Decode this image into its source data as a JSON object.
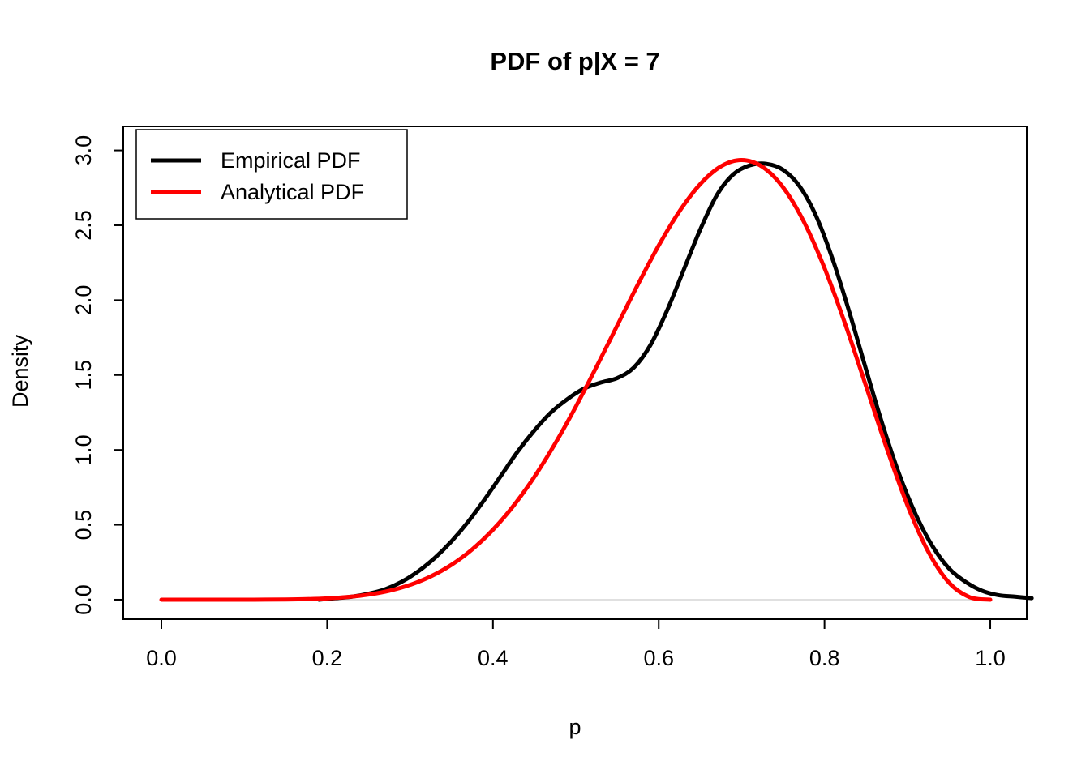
{
  "chart_data": {
    "type": "line",
    "title": "PDF of p|X = 7",
    "xlabel": "p",
    "ylabel": "Density",
    "xlim": [
      -0.046,
      1.044
    ],
    "ylim": [
      -0.13,
      3.16
    ],
    "x_tick_values": [
      0.0,
      0.2,
      0.4,
      0.6,
      0.8,
      1.0
    ],
    "x_tick_labels": [
      "0.0",
      "0.2",
      "0.4",
      "0.6",
      "0.8",
      "1.0"
    ],
    "y_tick_values": [
      0.0,
      0.5,
      1.0,
      1.5,
      2.0,
      2.5,
      3.0
    ],
    "y_tick_labels": [
      "0.0",
      "0.5",
      "1.0",
      "1.5",
      "2.0",
      "2.5",
      "3.0"
    ],
    "grid": "off",
    "zero_line_y": 0,
    "legend": {
      "position": "topleft",
      "entries": [
        {
          "label": "Empirical PDF",
          "color": "#000000"
        },
        {
          "label": "Analytical PDF",
          "color": "#ff0000"
        }
      ]
    },
    "series": [
      {
        "name": "Empirical PDF",
        "color": "#000000",
        "line_width": 5,
        "x": [
          0.19,
          0.21,
          0.23,
          0.25,
          0.27,
          0.29,
          0.31,
          0.33,
          0.35,
          0.37,
          0.39,
          0.41,
          0.43,
          0.45,
          0.47,
          0.49,
          0.51,
          0.53,
          0.55,
          0.57,
          0.59,
          0.61,
          0.63,
          0.65,
          0.67,
          0.69,
          0.71,
          0.73,
          0.75,
          0.77,
          0.79,
          0.81,
          0.83,
          0.85,
          0.87,
          0.89,
          0.91,
          0.93,
          0.95,
          0.97,
          0.99,
          1.01,
          1.03,
          1.05
        ],
        "y": [
          0.0,
          0.01,
          0.02,
          0.04,
          0.07,
          0.12,
          0.19,
          0.28,
          0.39,
          0.52,
          0.67,
          0.83,
          0.99,
          1.13,
          1.25,
          1.34,
          1.41,
          1.45,
          1.48,
          1.55,
          1.7,
          1.93,
          2.2,
          2.47,
          2.7,
          2.84,
          2.9,
          2.91,
          2.87,
          2.76,
          2.56,
          2.27,
          1.92,
          1.54,
          1.17,
          0.84,
          0.57,
          0.36,
          0.21,
          0.12,
          0.06,
          0.03,
          0.02,
          0.01
        ]
      },
      {
        "name": "Analytical PDF",
        "color": "#ff0000",
        "line_width": 5,
        "x": [
          0,
          0.025,
          0.05,
          0.075,
          0.1,
          0.125,
          0.15,
          0.175,
          0.2,
          0.225,
          0.25,
          0.275,
          0.3,
          0.325,
          0.35,
          0.375,
          0.4,
          0.425,
          0.45,
          0.475,
          0.5,
          0.525,
          0.55,
          0.575,
          0.6,
          0.625,
          0.65,
          0.675,
          0.7,
          0.725,
          0.75,
          0.775,
          0.8,
          0.825,
          0.85,
          0.875,
          0.9,
          0.925,
          0.95,
          0.975,
          1.0
        ],
        "y": [
          0,
          0,
          0,
          0,
          0.0001,
          0.0004,
          0.0014,
          0.0037,
          0.0087,
          0.0179,
          0.034,
          0.0598,
          0.099,
          0.1555,
          0.2332,
          0.3361,
          0.4671,
          0.6285,
          0.8206,
          1.0421,
          1.2891,
          1.5553,
          1.8313,
          2.1058,
          2.365,
          2.5933,
          2.7744,
          2.893,
          2.9351,
          2.8903,
          2.7534,
          2.5249,
          2.2146,
          1.8403,
          1.4282,
          1.0124,
          0.6314,
          0.3227,
          0.1152,
          0.0173,
          0
        ]
      }
    ]
  },
  "colors": {
    "background": "#ffffff",
    "axis": "#000000",
    "zero_line": "#e0e0e0",
    "empirical": "#000000",
    "analytical": "#ff0000"
  }
}
